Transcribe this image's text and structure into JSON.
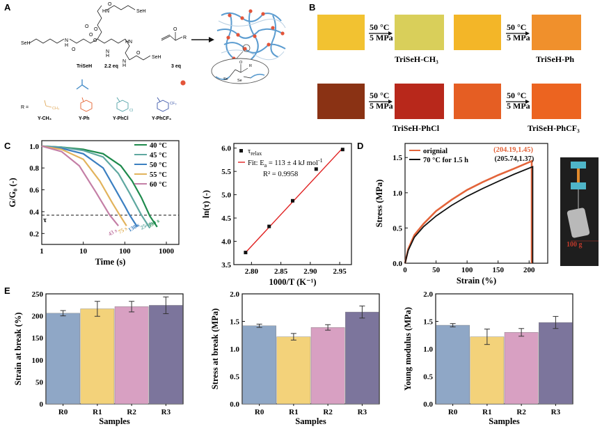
{
  "panel_labels": {
    "a": "A",
    "b": "B",
    "c": "C",
    "d": "D",
    "e": "E"
  },
  "scheme": {
    "mol_labels": [
      "SeH",
      "H",
      "N",
      "O",
      "HN",
      "O",
      "HN",
      "O",
      "N",
      "H",
      "SeH",
      "N",
      "H",
      "O",
      "O",
      "SeH",
      "O",
      "O"
    ],
    "trisech_label": "TriSeH",
    "eq1": "2.2 eq",
    "eq2": "3 eq",
    "r_label": "R",
    "r_eq": "R =",
    "r_names": [
      "Y-CH₃",
      "Y-Ph",
      "Y-PhCl",
      "Y-PhCF₃"
    ],
    "r_subs": [
      "CH₃",
      "Cl",
      "CF₃"
    ],
    "crosslink_labels": [
      "O",
      "R",
      "Se",
      "Se"
    ]
  },
  "panel_b": {
    "cond_temp": "50 °C",
    "cond_press": "5 MPa",
    "names": [
      "TriSeH-CH₃",
      "TriSeH-Ph",
      "TriSeH-PhCl",
      "TriSeH-PhCF₃"
    ],
    "colors": {
      "raw1": "#f2c231",
      "film1": "#d9cf5a",
      "raw2": "#f3b628",
      "film2": "#f0902c",
      "raw3": "#8a3214",
      "film3": "#b8281b",
      "raw4": "#e55e23",
      "film4": "#ec6420"
    }
  },
  "panel_c_photo": {
    "weight_label": "100 g"
  },
  "chart_data": [
    {
      "id": "C-left",
      "type": "line",
      "title": "",
      "xlabel": "Time (s)",
      "ylabel": "G/G₀ (-)",
      "xscale": "log",
      "xlim": [
        1,
        2000
      ],
      "ylim": [
        0.1,
        1.05
      ],
      "x_ticks": [
        1,
        10,
        100,
        1000
      ],
      "x_tick_labels": [
        "1",
        "10",
        "100",
        "1000"
      ],
      "y_ticks": [
        0.2,
        0.4,
        0.6,
        0.8,
        1.0
      ],
      "y_tick_labels": [
        "0.2",
        "0.4",
        "0.6",
        "0.8",
        "1.0"
      ],
      "tau_level": 0.368,
      "tau_label": "τ",
      "series": [
        {
          "name": "40 °C",
          "color": "#1e8a4c",
          "tau": 390,
          "tau_label": "390 s",
          "x": [
            1,
            3,
            10,
            30,
            80,
            150,
            250,
            400,
            600
          ],
          "y": [
            1.0,
            0.99,
            0.97,
            0.93,
            0.82,
            0.68,
            0.53,
            0.36,
            0.26
          ]
        },
        {
          "name": "45 °C",
          "color": "#5fa8a0",
          "tau": 254,
          "tau_label": "254 s",
          "x": [
            1,
            3,
            10,
            30,
            70,
            130,
            250,
            400
          ],
          "y": [
            1.0,
            0.99,
            0.96,
            0.9,
            0.75,
            0.57,
            0.37,
            0.25
          ]
        },
        {
          "name": "50 °C",
          "color": "#3b7fc1",
          "tau": 130,
          "tau_label": "130 s",
          "x": [
            1,
            3,
            10,
            30,
            60,
            100,
            130,
            200
          ],
          "y": [
            1.0,
            0.98,
            0.93,
            0.8,
            0.6,
            0.45,
            0.37,
            0.26
          ]
        },
        {
          "name": "55 °C",
          "color": "#e2b35c",
          "tau": 75,
          "tau_label": "75 s",
          "x": [
            1,
            3,
            10,
            25,
            50,
            75,
            110
          ],
          "y": [
            1.0,
            0.97,
            0.88,
            0.68,
            0.48,
            0.37,
            0.27
          ]
        },
        {
          "name": "60 °C",
          "color": "#c47fa6",
          "tau": 43,
          "tau_label": "43 s",
          "x": [
            1,
            3,
            8,
            20,
            43,
            70
          ],
          "y": [
            1.0,
            0.95,
            0.82,
            0.58,
            0.37,
            0.27
          ]
        }
      ]
    },
    {
      "id": "C-right",
      "type": "scatter",
      "title": "",
      "xlabel": "1000/T (K⁻¹)",
      "ylabel": "ln(τ) (-)",
      "xlim": [
        2.77,
        2.97
      ],
      "ylim": [
        3.5,
        6.1
      ],
      "x_ticks": [
        2.8,
        2.85,
        2.9,
        2.95
      ],
      "x_tick_labels": [
        "2.80",
        "2.85",
        "2.90",
        "2.95"
      ],
      "y_ticks": [
        3.5,
        4.0,
        4.5,
        5.0,
        5.5,
        6.0
      ],
      "y_tick_labels": [
        "3.5",
        "4.0",
        "4.5",
        "5.0",
        "5.5",
        "6.0"
      ],
      "points": {
        "name": "τrelax",
        "x": [
          2.79,
          2.83,
          2.87,
          2.91,
          2.955
        ],
        "y": [
          3.76,
          4.32,
          4.87,
          5.55,
          5.97
        ]
      },
      "fit": {
        "x": [
          2.79,
          2.955
        ],
        "y": [
          3.76,
          6.0
        ],
        "color": "#e02020"
      },
      "legend": {
        "points_label": "τ",
        "points_sub": "relax",
        "fit_label": "Fit: E",
        "fit_sub": "a",
        "fit_rest": " = 113 ± 4 kJ mol",
        "fit_sup": "-1",
        "r2": "R² = 0.9958"
      }
    },
    {
      "id": "D",
      "type": "line",
      "title": "",
      "xlabel": "Strain (%)",
      "ylabel": "Stress (MPa)",
      "xlim": [
        0,
        230
      ],
      "ylim": [
        0,
        1.7
      ],
      "x_ticks": [
        0,
        50,
        100,
        150,
        200
      ],
      "x_tick_labels": [
        "0",
        "50",
        "100",
        "150",
        "200"
      ],
      "y_ticks": [
        0.0,
        0.5,
        1.0,
        1.5
      ],
      "y_tick_labels": [
        "0.0",
        "0.5",
        "1.0",
        "1.5"
      ],
      "annotations": [
        {
          "text": "(204.19,1.45)",
          "color": "#e3643a",
          "x": 204.19,
          "y": 1.45
        },
        {
          "text": "(205.74,1.37)",
          "color": "#111111",
          "x": 205.74,
          "y": 1.37
        }
      ],
      "series": [
        {
          "name": "orignial",
          "color": "#e3643a",
          "x": [
            0,
            5,
            15,
            30,
            50,
            75,
            100,
            125,
            150,
            175,
            204.19,
            204.19
          ],
          "y": [
            0,
            0.2,
            0.4,
            0.56,
            0.74,
            0.9,
            1.04,
            1.15,
            1.25,
            1.34,
            1.45,
            0
          ]
        },
        {
          "name": "70 °C for 1.5 h",
          "color": "#111111",
          "x": [
            0,
            5,
            15,
            30,
            50,
            75,
            100,
            125,
            150,
            175,
            205.74,
            205.74
          ],
          "y": [
            0,
            0.18,
            0.37,
            0.52,
            0.67,
            0.82,
            0.95,
            1.06,
            1.16,
            1.26,
            1.37,
            0
          ]
        }
      ]
    },
    {
      "id": "E1",
      "type": "bar",
      "xlabel": "Samples",
      "ylabel": "Strain at break (%)",
      "categories": [
        "R0",
        "R1",
        "R2",
        "R3"
      ],
      "values": [
        206,
        216,
        221,
        224
      ],
      "errors": [
        6,
        17,
        12,
        19
      ],
      "colors": [
        "#8fa7c6",
        "#f3d27a",
        "#d8a0c2",
        "#7c759c"
      ],
      "ylim": [
        0,
        250
      ],
      "y_ticks": [
        0,
        50,
        100,
        150,
        200,
        250
      ],
      "y_tick_labels": [
        "0",
        "50",
        "100",
        "150",
        "200",
        "250"
      ]
    },
    {
      "id": "E2",
      "type": "bar",
      "xlabel": "Samples",
      "ylabel": "Stress at break (MPa)",
      "categories": [
        "R0",
        "R1",
        "R2",
        "R3"
      ],
      "values": [
        1.42,
        1.22,
        1.39,
        1.67
      ],
      "errors": [
        0.03,
        0.06,
        0.05,
        0.11
      ],
      "colors": [
        "#8fa7c6",
        "#f3d27a",
        "#d8a0c2",
        "#7c759c"
      ],
      "ylim": [
        0,
        2.0
      ],
      "y_ticks": [
        0,
        0.5,
        1.0,
        1.5,
        2.0
      ],
      "y_tick_labels": [
        "0.0",
        "0.5",
        "1.0",
        "1.5",
        "2.0"
      ]
    },
    {
      "id": "E3",
      "type": "bar",
      "xlabel": "Samples",
      "ylabel": "Young modulus (MPa)",
      "categories": [
        "R0",
        "R1",
        "R2",
        "R3"
      ],
      "values": [
        1.43,
        1.22,
        1.3,
        1.48
      ],
      "errors": [
        0.03,
        0.14,
        0.07,
        0.11
      ],
      "colors": [
        "#8fa7c6",
        "#f3d27a",
        "#d8a0c2",
        "#7c759c"
      ],
      "ylim": [
        0,
        2.0
      ],
      "y_ticks": [
        0,
        0.5,
        1.0,
        1.5,
        2.0
      ],
      "y_tick_labels": [
        "0.0",
        "0.5",
        "1.0",
        "1.5",
        "2.0"
      ]
    }
  ]
}
